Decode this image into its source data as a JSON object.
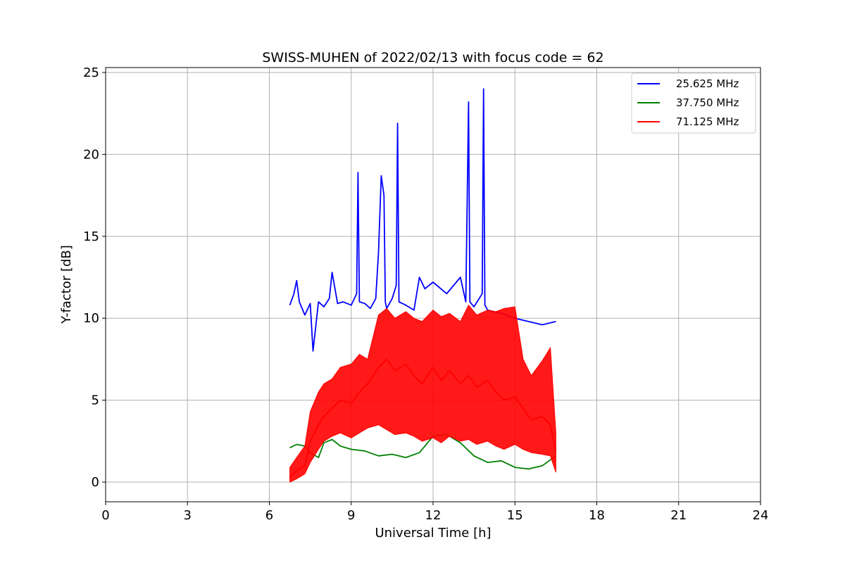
{
  "chart_data": {
    "type": "line",
    "title": "SWISS-MUHEN of 2022/02/13 with focus code = 62",
    "xlabel": "Universal Time [h]",
    "ylabel": "Y-factor [dB]",
    "xlim": [
      0,
      24
    ],
    "ylim": [
      -1.2,
      25.3
    ],
    "xticks": [
      0,
      3,
      6,
      9,
      12,
      15,
      18,
      21,
      24
    ],
    "yticks": [
      0,
      5,
      10,
      15,
      20,
      25
    ],
    "grid": true,
    "legend_position": "top-right",
    "series": [
      {
        "name": "25.625 MHz",
        "color": "#0000ff",
        "x": [
          6.75,
          6.9,
          7.0,
          7.1,
          7.3,
          7.5,
          7.6,
          7.8,
          8.0,
          8.2,
          8.3,
          8.5,
          8.7,
          9.0,
          9.2,
          9.25,
          9.3,
          9.5,
          9.7,
          9.9,
          10.0,
          10.1,
          10.2,
          10.25,
          10.3,
          10.5,
          10.65,
          10.7,
          10.75,
          11.0,
          11.3,
          11.5,
          11.7,
          12.0,
          12.5,
          13.0,
          13.2,
          13.3,
          13.35,
          13.5,
          13.8,
          13.85,
          13.9,
          14.0,
          14.5,
          15.0,
          15.5,
          16.0,
          16.5
        ],
        "y": [
          10.8,
          11.5,
          12.3,
          11.0,
          10.2,
          10.9,
          8.0,
          11.0,
          10.7,
          11.2,
          12.8,
          10.9,
          11.0,
          10.8,
          11.5,
          18.9,
          11.0,
          10.9,
          10.6,
          11.2,
          14.0,
          18.7,
          17.5,
          11.0,
          10.6,
          11.2,
          12.0,
          21.9,
          11.0,
          10.8,
          10.5,
          12.5,
          11.8,
          12.2,
          11.5,
          12.5,
          11.0,
          23.2,
          11.0,
          10.7,
          11.5,
          24.0,
          10.8,
          10.5,
          10.3,
          10.0,
          9.8,
          9.6,
          9.8
        ]
      },
      {
        "name": "37.750 MHz",
        "color": "#008000",
        "x": [
          6.75,
          7.0,
          7.3,
          7.5,
          7.8,
          8.0,
          8.3,
          8.6,
          9.0,
          9.5,
          10.0,
          10.5,
          11.0,
          11.5,
          12.0,
          12.5,
          13.0,
          13.5,
          14.0,
          14.5,
          15.0,
          15.5,
          16.0,
          16.5
        ],
        "y": [
          2.1,
          2.3,
          2.2,
          1.8,
          1.5,
          2.4,
          2.6,
          2.2,
          2.0,
          1.9,
          1.6,
          1.7,
          1.5,
          1.8,
          2.8,
          2.9,
          2.4,
          1.6,
          1.2,
          1.3,
          0.9,
          0.8,
          1.0,
          1.6
        ]
      },
      {
        "name": "71.125 MHz",
        "color": "#ff0000",
        "x": [
          6.75,
          7.0,
          7.3,
          7.5,
          7.8,
          8.0,
          8.3,
          8.6,
          9.0,
          9.3,
          9.6,
          10.0,
          10.3,
          10.6,
          11.0,
          11.3,
          11.6,
          12.0,
          12.3,
          12.6,
          13.0,
          13.3,
          13.6,
          14.0,
          14.3,
          14.6,
          15.0,
          15.3,
          15.6,
          16.0,
          16.3,
          16.5
        ],
        "y": [
          0.3,
          0.7,
          1.0,
          2.5,
          3.5,
          4.0,
          4.5,
          5.0,
          4.8,
          5.5,
          6.0,
          7.0,
          7.5,
          6.8,
          7.2,
          6.5,
          6.0,
          7.0,
          6.2,
          6.8,
          6.0,
          6.5,
          5.8,
          6.2,
          5.5,
          5.0,
          5.2,
          4.5,
          3.8,
          4.0,
          3.5,
          1.8
        ],
        "band_low": [
          0.0,
          0.2,
          0.5,
          1.2,
          2.0,
          2.5,
          2.8,
          3.0,
          2.7,
          3.0,
          3.3,
          3.5,
          3.2,
          2.9,
          3.0,
          2.8,
          2.5,
          2.7,
          2.4,
          2.8,
          2.5,
          2.6,
          2.3,
          2.5,
          2.2,
          2.0,
          2.3,
          2.0,
          1.8,
          1.7,
          1.6,
          0.6
        ],
        "band_high": [
          0.9,
          1.5,
          2.2,
          4.3,
          5.5,
          6.0,
          6.3,
          7.0,
          7.2,
          7.8,
          7.5,
          10.2,
          10.6,
          10.0,
          10.4,
          10.0,
          9.8,
          10.5,
          10.1,
          10.3,
          9.8,
          10.8,
          10.2,
          10.5,
          10.4,
          10.6,
          10.7,
          7.5,
          6.5,
          7.4,
          8.2,
          3.0
        ]
      }
    ]
  }
}
